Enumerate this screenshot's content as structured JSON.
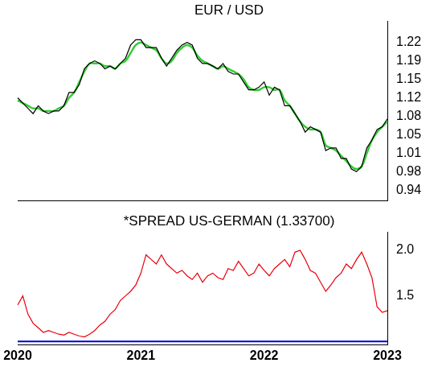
{
  "chart_data": [
    {
      "type": "line",
      "title": "EUR / USD",
      "categories": [
        "2020",
        null,
        null,
        null,
        null,
        null,
        null,
        null,
        null,
        null,
        null,
        null,
        null,
        null,
        null,
        null,
        null,
        null,
        null,
        null,
        null,
        null,
        null,
        null,
        "2021",
        null,
        null,
        null,
        null,
        null,
        null,
        null,
        null,
        null,
        null,
        null,
        null,
        null,
        null,
        null,
        null,
        null,
        null,
        null,
        null,
        null,
        null,
        null,
        "2022",
        null,
        null,
        null,
        null,
        null,
        null,
        null,
        null,
        null,
        null,
        null,
        null,
        null,
        null,
        null,
        null,
        null,
        null,
        null,
        null,
        null,
        null,
        null,
        "2023"
      ],
      "series": [
        {
          "color": "#000000",
          "values": [
            1.115,
            1.105,
            1.095,
            1.085,
            1.1,
            1.09,
            1.085,
            1.09,
            1.09,
            1.1,
            1.125,
            1.125,
            1.14,
            1.17,
            1.18,
            1.185,
            1.18,
            1.17,
            1.175,
            1.17,
            1.18,
            1.19,
            1.215,
            1.225,
            1.225,
            1.21,
            1.21,
            1.21,
            1.19,
            1.175,
            1.19,
            1.205,
            1.215,
            1.22,
            1.215,
            1.19,
            1.18,
            1.18,
            1.175,
            1.17,
            1.18,
            1.165,
            1.16,
            1.16,
            1.145,
            1.13,
            1.13,
            1.135,
            1.145,
            1.12,
            1.135,
            1.13,
            1.1,
            1.1,
            1.085,
            1.07,
            1.05,
            1.06,
            1.055,
            1.05,
            1.015,
            1.02,
            1.02,
            1.0,
            1.0,
            0.98,
            0.975,
            0.985,
            1.02,
            1.035,
            1.055,
            1.06,
            1.075
          ]
        },
        {
          "color": "#33cc33",
          "values": [
            1.11,
            1.105,
            1.1,
            1.095,
            1.095,
            1.09,
            1.09,
            1.09,
            1.095,
            1.1,
            1.115,
            1.125,
            1.145,
            1.165,
            1.18,
            1.18,
            1.18,
            1.175,
            1.175,
            1.17,
            1.18,
            1.185,
            1.2,
            1.215,
            1.22,
            1.215,
            1.21,
            1.205,
            1.19,
            1.18,
            1.185,
            1.2,
            1.21,
            1.215,
            1.21,
            1.195,
            1.185,
            1.18,
            1.175,
            1.17,
            1.175,
            1.17,
            1.165,
            1.16,
            1.15,
            1.135,
            1.13,
            1.13,
            1.135,
            1.135,
            1.13,
            1.13,
            1.11,
            1.1,
            1.085,
            1.07,
            1.06,
            1.055,
            1.055,
            1.05,
            1.025,
            1.02,
            1.015,
            1.005,
            0.995,
            0.985,
            0.98,
            0.985,
            1.01,
            1.035,
            1.05,
            1.06,
            1.07
          ]
        }
      ],
      "ylim": [
        0.92,
        1.26
      ],
      "yticks": [
        0.94,
        {
          "value": 0.975,
          "label": "0.98"
        },
        1.01,
        {
          "value": 1.045,
          "label": "1.05"
        },
        1.08,
        {
          "value": 1.115,
          "label": "1.12"
        },
        1.15,
        {
          "value": 1.185,
          "label": "1.19"
        },
        1.22
      ],
      "tick_labels": "y",
      "grid": false
    },
    {
      "type": "line",
      "title": "*SPREAD US-GERMAN (1.33700)",
      "categories": [
        "2020",
        null,
        null,
        null,
        null,
        null,
        null,
        null,
        null,
        null,
        null,
        null,
        null,
        null,
        null,
        null,
        null,
        null,
        null,
        null,
        null,
        null,
        null,
        null,
        "2021",
        null,
        null,
        null,
        null,
        null,
        null,
        null,
        null,
        null,
        null,
        null,
        null,
        null,
        null,
        null,
        null,
        null,
        null,
        null,
        null,
        null,
        null,
        null,
        "2022",
        null,
        null,
        null,
        null,
        null,
        null,
        null,
        null,
        null,
        null,
        null,
        null,
        null,
        null,
        null,
        null,
        null,
        null,
        null,
        null,
        null,
        null,
        null,
        "2023"
      ],
      "series": [
        {
          "color": "#e8000b",
          "values": [
            1.4,
            1.5,
            1.3,
            1.2,
            1.15,
            1.1,
            1.12,
            1.1,
            1.08,
            1.07,
            1.1,
            1.08,
            1.06,
            1.05,
            1.08,
            1.12,
            1.18,
            1.22,
            1.3,
            1.35,
            1.45,
            1.5,
            1.55,
            1.62,
            1.75,
            1.95,
            1.9,
            1.85,
            1.95,
            1.85,
            1.8,
            1.75,
            1.78,
            1.72,
            1.68,
            1.75,
            1.65,
            1.72,
            1.75,
            1.7,
            1.68,
            1.8,
            1.78,
            1.88,
            1.8,
            1.72,
            1.75,
            1.85,
            1.78,
            1.72,
            1.8,
            1.85,
            1.9,
            1.82,
            1.98,
            2.0,
            1.9,
            1.78,
            1.75,
            1.65,
            1.55,
            1.62,
            1.7,
            1.75,
            1.85,
            1.8,
            1.9,
            1.98,
            1.85,
            1.7,
            1.38,
            1.32,
            1.337
          ]
        }
      ],
      "hline": {
        "value": 1,
        "color": "#0000dd"
      },
      "ylim": [
        0.96,
        2.2
      ],
      "yticks": [
        1.5,
        {
          "value": 2,
          "label": "2.0"
        }
      ],
      "grid": false
    }
  ]
}
